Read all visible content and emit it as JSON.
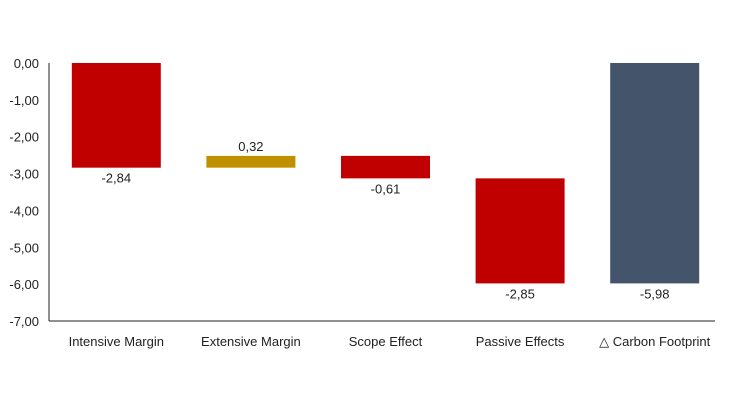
{
  "chart_data": {
    "type": "waterfall",
    "title": "",
    "xlabel": "",
    "ylabel": "",
    "ylim": [
      -7,
      0
    ],
    "yticks": [
      "0,00",
      "-1,00",
      "-2,00",
      "-3,00",
      "-4,00",
      "-5,00",
      "-6,00",
      "-7,00"
    ],
    "ytick_values": [
      0,
      -1,
      -2,
      -3,
      -4,
      -5,
      -6,
      -7
    ],
    "grid": false,
    "categories": [
      "Intensive Margin",
      "Extensive Margin",
      "Scope Effect",
      "Passive Effects",
      "△ Carbon Footprint"
    ],
    "values": [
      -2.84,
      0.32,
      -0.61,
      -2.85,
      -5.98
    ],
    "labels": [
      "-2,84",
      "0,32",
      "-0,61",
      "-2,85",
      "-5,98"
    ],
    "is_total": [
      false,
      false,
      false,
      false,
      true
    ],
    "colors": {
      "negative": "#C00000",
      "positive": "#BF9000",
      "total": "#44546A"
    }
  }
}
